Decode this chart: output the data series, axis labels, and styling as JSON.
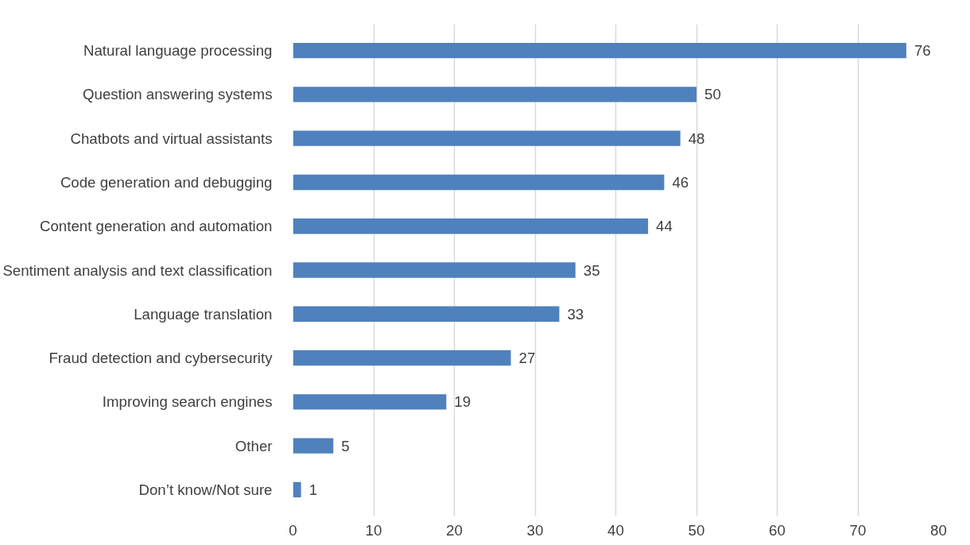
{
  "chart_data": {
    "type": "bar",
    "orientation": "horizontal",
    "categories": [
      "Natural language processing",
      "Question answering systems",
      "Chatbots and virtual assistants",
      "Code generation and debugging",
      "Content generation and automation",
      "Sentiment analysis and text classification",
      "Language translation",
      "Fraud detection and cybersecurity",
      "Improving search engines",
      "Other",
      "Don’t know/Not sure"
    ],
    "values": [
      76,
      50,
      48,
      46,
      44,
      35,
      33,
      27,
      19,
      5,
      1
    ],
    "color": "#4f81bd",
    "xlim": [
      0,
      80
    ],
    "xticks": [
      0,
      10,
      20,
      30,
      40,
      50,
      60,
      70,
      80
    ],
    "grid": "x",
    "data_labels": true
  }
}
